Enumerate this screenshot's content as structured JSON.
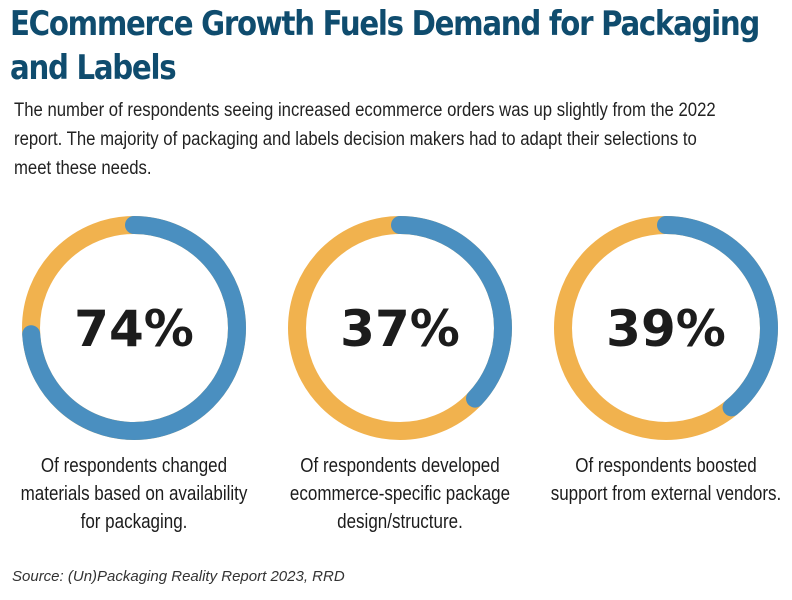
{
  "title": "ECommerce Growth Fuels Demand for Packaging and Labels",
  "subtitle": "The number of respondents seeing increased ecommerce orders was up slightly from the 2022 report. The majority of packaging and labels decision makers had to adapt their selections to meet these needs.",
  "source": "Source: (Un)Packaging Reality Report 2023, RRD",
  "colors": {
    "filled": "#4a8fc0",
    "remainder": "#f1b24e",
    "title": "#0f4c6e"
  },
  "chart_data": {
    "type": "pie",
    "variant": "donut",
    "items": [
      {
        "value": 74,
        "label": "74%",
        "caption": "Of respondents changed materials based on availability for packaging."
      },
      {
        "value": 37,
        "label": "37%",
        "caption": "Of respondents developed ecommerce-specific package design/structure."
      },
      {
        "value": 39,
        "label": "39%",
        "caption": "Of respondents boosted support from external vendors."
      }
    ]
  }
}
